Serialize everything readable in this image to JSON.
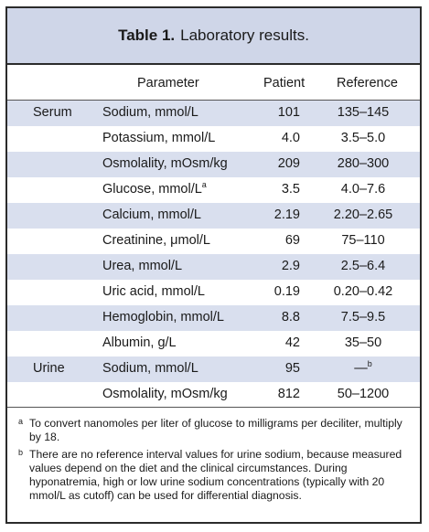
{
  "table": {
    "title_bold": "Table 1.",
    "title_rest": "Laboratory results.",
    "headers": {
      "parameter": "Parameter",
      "patient": "Patient",
      "reference": "Reference"
    },
    "rows": [
      {
        "group": "Serum",
        "parameter": "Sodium, mmol/L",
        "sup": "",
        "patient": "101",
        "reference": "135–145",
        "ref_sup": ""
      },
      {
        "group": "",
        "parameter": "Potassium, mmol/L",
        "sup": "",
        "patient": "4.0",
        "reference": "3.5–5.0",
        "ref_sup": ""
      },
      {
        "group": "",
        "parameter": "Osmolality, mOsm/kg",
        "sup": "",
        "patient": "209",
        "reference": "280–300",
        "ref_sup": ""
      },
      {
        "group": "",
        "parameter": "Glucose, mmol/L",
        "sup": "a",
        "patient": "3.5",
        "reference": "4.0–7.6",
        "ref_sup": ""
      },
      {
        "group": "",
        "parameter": "Calcium, mmol/L",
        "sup": "",
        "patient": "2.19",
        "reference": "2.20–2.65",
        "ref_sup": ""
      },
      {
        "group": "",
        "parameter": "Creatinine, μmol/L",
        "sup": "",
        "patient": "69",
        "reference": "75–110",
        "ref_sup": ""
      },
      {
        "group": "",
        "parameter": "Urea, mmol/L",
        "sup": "",
        "patient": "2.9",
        "reference": "2.5–6.4",
        "ref_sup": ""
      },
      {
        "group": "",
        "parameter": "Uric acid, mmol/L",
        "sup": "",
        "patient": "0.19",
        "reference": "0.20–0.42",
        "ref_sup": ""
      },
      {
        "group": "",
        "parameter": "Hemoglobin, mmol/L",
        "sup": "",
        "patient": "8.8",
        "reference": "7.5–9.5",
        "ref_sup": ""
      },
      {
        "group": "",
        "parameter": "Albumin, g/L",
        "sup": "",
        "patient": "42",
        "reference": "35–50",
        "ref_sup": ""
      },
      {
        "group": "Urine",
        "parameter": "Sodium, mmol/L",
        "sup": "",
        "patient": "95",
        "reference": "—",
        "ref_sup": "b"
      },
      {
        "group": "",
        "parameter": "Osmolality, mOsm/kg",
        "sup": "",
        "patient": "812",
        "reference": "50–1200",
        "ref_sup": ""
      }
    ],
    "footnotes": [
      {
        "mark": "a",
        "text": "To convert nanomoles per liter of glucose to milligrams per deciliter, multiply by 18."
      },
      {
        "mark": "b",
        "text": "There are no reference interval values for urine sodium, because measured values depend on the diet and the clinical circumstances. During hyponatremia, high or low urine sodium concentrations (typically with 20 mmol/L as cutoff) can be used for differential diagnosis."
      }
    ]
  },
  "colors": {
    "shade": "#d9dfee",
    "title_bg": "#cfd6e8",
    "border": "#2b2b2b"
  }
}
